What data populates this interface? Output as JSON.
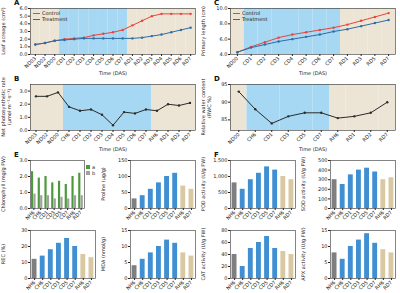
{
  "chart_data": [
    {
      "type": "line",
      "title": "A",
      "x_label": "Time (DAS)",
      "y_label": "Leaf acreage (cm²)",
      "categories": [
        "ND03",
        "ND02",
        "ND00",
        "CD1",
        "CD2",
        "CD3",
        "CD4",
        "CD5",
        "CD6",
        "CD7",
        "RD1",
        "RD2",
        "RD3",
        "RD4",
        "RD5",
        "RD6",
        "RD7"
      ],
      "series": [
        {
          "name": "Control",
          "color": "#e8453c",
          "values": [
            1.3,
            1.5,
            1.8,
            2.0,
            2.1,
            2.2,
            2.5,
            2.7,
            2.9,
            3.2,
            3.8,
            4.4,
            5.0,
            5.3,
            5.3,
            5.3,
            5.3
          ]
        },
        {
          "name": "Treatment",
          "color": "#2e6da4",
          "values": [
            1.3,
            1.5,
            1.8,
            1.9,
            2.0,
            2.1,
            2.1,
            2.1,
            2.1,
            2.1,
            2.1,
            2.2,
            2.4,
            2.6,
            2.9,
            3.2,
            3.5
          ]
        }
      ],
      "ylim": [
        0,
        6
      ],
      "yticks": [
        0,
        1,
        2,
        3,
        4,
        5,
        6
      ],
      "legend": "upper left"
    },
    {
      "type": "line",
      "title": "B",
      "x_label": "Time (DAS)",
      "y_label": "Net photosynthetic rate (μmol·m⁻²·s⁻¹)",
      "categories": [
        "ND03",
        "ND02",
        "ND00",
        "CH6",
        "CD1",
        "CD2",
        "CD3",
        "CD4",
        "CD5",
        "CD6",
        "CD7",
        "RH6",
        "RD1",
        "RD2",
        "RD7"
      ],
      "series": [
        {
          "name": "Treatment",
          "color": "#2b2b2b",
          "values": [
            2.6,
            2.6,
            2.9,
            1.8,
            1.5,
            1.6,
            1.2,
            0.4,
            1.4,
            1.3,
            1.6,
            1.5,
            2.0,
            1.9,
            2.1
          ]
        }
      ],
      "ylim": [
        0,
        3.5
      ],
      "yticks": [
        0,
        1,
        2,
        3
      ]
    },
    {
      "type": "line",
      "title": "C",
      "x_label": "Time (DAS)",
      "y_label": "Primary length (cm)",
      "categories": [
        "ND00",
        "CD1",
        "CD2",
        "CD3",
        "CD4",
        "CD5",
        "CD6",
        "CD7",
        "RD1",
        "RD3",
        "RD5",
        "RD7"
      ],
      "series": [
        {
          "name": "Control",
          "color": "#e8453c",
          "values": [
            4.3,
            5.0,
            5.6,
            6.2,
            6.6,
            6.9,
            7.2,
            7.5,
            7.9,
            8.4,
            8.9,
            9.4
          ]
        },
        {
          "name": "Treatment",
          "color": "#2e6da4",
          "values": [
            4.3,
            4.9,
            5.3,
            5.7,
            6.0,
            6.3,
            6.6,
            7.0,
            7.3,
            7.7,
            8.1,
            8.5
          ]
        }
      ],
      "ylim": [
        4,
        10
      ],
      "yticks": [
        4,
        6,
        8,
        10
      ],
      "legend": "upper left"
    },
    {
      "type": "line",
      "title": "D",
      "x_label": "Time (DAS)",
      "y_label": "Relative water content (RWC %)",
      "categories": [
        "ND00",
        "CH6",
        "CD1",
        "CD3",
        "CD5",
        "CD7",
        "RH6",
        "RD1",
        "RD2",
        "RD7"
      ],
      "series": [
        {
          "name": "Treatment",
          "color": "#2b2b2b",
          "values": [
            93,
            88,
            84,
            86,
            87,
            87,
            85.5,
            86,
            87,
            90
          ]
        }
      ],
      "ylim": [
        82,
        95
      ],
      "yticks": [
        85,
        90,
        95
      ]
    },
    {
      "type": "bar",
      "title": "E",
      "y_label": "Chlorophyll (mg/g FW)",
      "categories": [
        "NH6",
        "CH6",
        "CD1",
        "CD3",
        "CD5",
        "CD7",
        "RH6",
        "RD7"
      ],
      "series": [
        {
          "name": "a",
          "color": "#4d9a3c",
          "values": [
            2.3,
            1.9,
            2.0,
            1.6,
            1.7,
            1.5,
            2.0,
            2.2
          ]
        },
        {
          "name": "b",
          "color": "#a0a0a0",
          "values": [
            0.9,
            0.8,
            0.8,
            0.6,
            0.7,
            0.6,
            0.8,
            0.8
          ]
        }
      ],
      "ylim": [
        0,
        3
      ],
      "yticks": [
        0,
        1,
        2,
        3
      ],
      "legend": "right"
    },
    {
      "type": "bar",
      "y_label": "Proline (μg/g)",
      "categories": [
        "NH6",
        "CH6",
        "CD1",
        "CD3",
        "CD5",
        "CD7",
        "RH6",
        "RD7"
      ],
      "values": [
        30,
        40,
        60,
        80,
        100,
        110,
        70,
        60
      ],
      "colors": [
        "#7f7f7f",
        "#3f8fd2",
        "#3f8fd2",
        "#3f8fd2",
        "#3f8fd2",
        "#3f8fd2",
        "#d9c9a3",
        "#d9c9a3"
      ],
      "ylim": [
        0,
        150
      ],
      "yticks": [
        0,
        50,
        100,
        150
      ]
    },
    {
      "type": "bar",
      "y_label": "REC (%)",
      "categories": [
        "NH6",
        "CH6",
        "CD1",
        "CD3",
        "CD5",
        "CD7",
        "RH6",
        "RD7"
      ],
      "values": [
        12,
        14,
        18,
        22,
        25,
        20,
        15,
        13
      ],
      "colors": [
        "#7f7f7f",
        "#3f8fd2",
        "#3f8fd2",
        "#3f8fd2",
        "#3f8fd2",
        "#3f8fd2",
        "#d9c9a3",
        "#d9c9a3"
      ],
      "ylim": [
        0,
        30
      ],
      "yticks": [
        0,
        10,
        20,
        30
      ]
    },
    {
      "type": "bar",
      "y_label": "MDA (nmol/g)",
      "categories": [
        "NH6",
        "CH6",
        "CD1",
        "CD3",
        "CD5",
        "CD7",
        "RH6",
        "RD7"
      ],
      "values": [
        4,
        6,
        8,
        10,
        12,
        11,
        8,
        7
      ],
      "colors": [
        "#7f7f7f",
        "#3f8fd2",
        "#3f8fd2",
        "#3f8fd2",
        "#3f8fd2",
        "#3f8fd2",
        "#d9c9a3",
        "#d9c9a3"
      ],
      "ylim": [
        0,
        15
      ],
      "yticks": [
        0,
        5,
        10,
        15
      ]
    },
    {
      "type": "bar",
      "title": "F",
      "y_label": "POD activity (U/g FW)",
      "categories": [
        "NH6",
        "CH6",
        "CD1",
        "CD3",
        "CD5",
        "CD7",
        "RH6",
        "RD7"
      ],
      "values": [
        800,
        600,
        900,
        1100,
        1300,
        1200,
        1000,
        900
      ],
      "colors": [
        "#7f7f7f",
        "#3f8fd2",
        "#3f8fd2",
        "#3f8fd2",
        "#3f8fd2",
        "#3f8fd2",
        "#d9c9a3",
        "#d9c9a3"
      ],
      "ylim": [
        0,
        1500
      ],
      "yticks": [
        0,
        500,
        1000,
        1500
      ]
    },
    {
      "type": "bar",
      "y_label": "SOD activity (U/g FW)",
      "categories": [
        "NH6",
        "CH6",
        "CD1",
        "CD3",
        "CD5",
        "CD7",
        "RH6",
        "RD7"
      ],
      "values": [
        300,
        250,
        350,
        400,
        420,
        380,
        300,
        320
      ],
      "colors": [
        "#7f7f7f",
        "#3f8fd2",
        "#3f8fd2",
        "#3f8fd2",
        "#3f8fd2",
        "#3f8fd2",
        "#d9c9a3",
        "#d9c9a3"
      ],
      "ylim": [
        0,
        500
      ],
      "yticks": [
        0,
        100,
        200,
        300,
        400,
        500
      ]
    },
    {
      "type": "bar",
      "y_label": "CAT activity (U/g FW)",
      "categories": [
        "NH6",
        "CH6",
        "CD1",
        "CD3",
        "CD5",
        "CD7",
        "RH6",
        "RD7"
      ],
      "values": [
        40,
        20,
        50,
        60,
        70,
        50,
        45,
        40
      ],
      "colors": [
        "#7f7f7f",
        "#3f8fd2",
        "#3f8fd2",
        "#3f8fd2",
        "#3f8fd2",
        "#3f8fd2",
        "#d9c9a3",
        "#d9c9a3"
      ],
      "ylim": [
        0,
        80
      ],
      "yticks": [
        0,
        20,
        40,
        60,
        80
      ]
    },
    {
      "type": "bar",
      "y_label": "APX activity (U/g FW)",
      "categories": [
        "NH6",
        "CH6",
        "CD1",
        "CD3",
        "CD5",
        "CD7",
        "RH6",
        "RD7"
      ],
      "values": [
        8,
        6,
        10,
        12,
        14,
        11,
        9,
        8
      ],
      "colors": [
        "#7f7f7f",
        "#3f8fd2",
        "#3f8fd2",
        "#3f8fd2",
        "#3f8fd2",
        "#3f8fd2",
        "#d9c9a3",
        "#d9c9a3"
      ],
      "ylim": [
        0,
        15
      ],
      "yticks": [
        0,
        5,
        10,
        15
      ]
    }
  ]
}
